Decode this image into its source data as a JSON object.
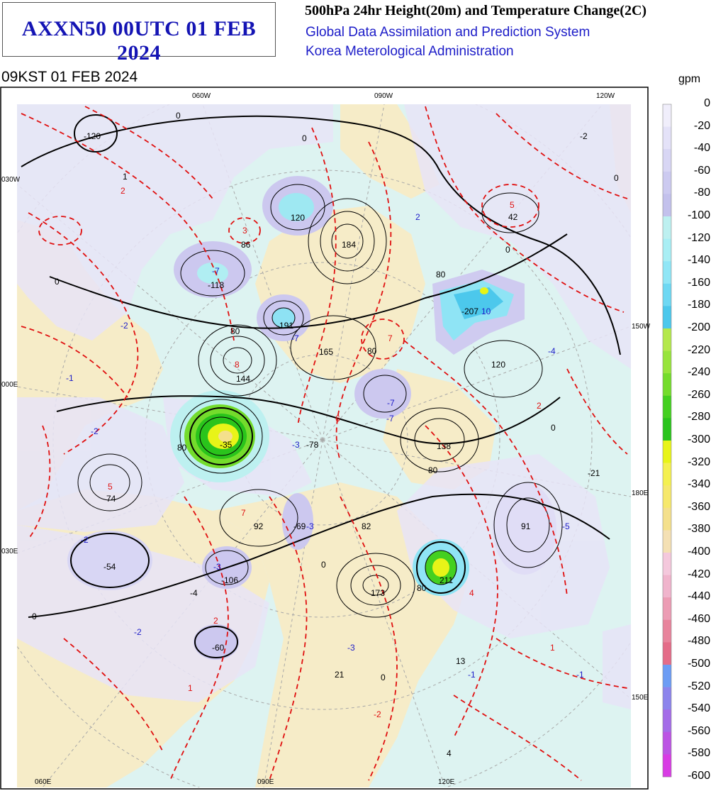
{
  "header": {
    "product_id": "AXXN50 00UTC 01 FEB 2024",
    "title": "500hPa 24hr Height(20m) and Temperature Change(2C)",
    "subtitle1": "Global Data Assimilation and Prediction System",
    "subtitle2": "Korea Meterological Administration",
    "valid_time": "09KST 01 FEB 2024"
  },
  "colorbar": {
    "unit": "gpm",
    "labels": [
      "0",
      "-20",
      "-40",
      "-60",
      "-80",
      "-100",
      "-120",
      "-140",
      "-160",
      "-180",
      "-200",
      "-220",
      "-240",
      "-260",
      "-280",
      "-300",
      "-320",
      "-340",
      "-360",
      "-380",
      "-400",
      "-420",
      "-440",
      "-460",
      "-480",
      "-500",
      "-520",
      "-540",
      "-560",
      "-580",
      "-600"
    ],
    "colors": [
      "#f0eefb",
      "#e4e2f8",
      "#d8d6f4",
      "#cccaf0",
      "#c3c1ec",
      "#bdf0f0",
      "#a9eef4",
      "#90e6f6",
      "#6ed8f3",
      "#4cc8ec",
      "#b4e84c",
      "#98e43c",
      "#74dc2c",
      "#44d020",
      "#2ac41c",
      "#e8f418",
      "#f4f050",
      "#f6e86c",
      "#f4e08c",
      "#f4e0b4",
      "#f4c8dc",
      "#f0b4cc",
      "#ec9cb4",
      "#e8849c",
      "#e46c88",
      "#6c9cf4",
      "#8c84ec",
      "#a46ce8",
      "#bc54e4",
      "#d83ce4"
    ]
  },
  "graticule_labels": {
    "top": [
      "060W",
      "090W",
      "120W"
    ],
    "left": [
      "030W",
      "000E",
      "030E"
    ],
    "right": [
      "150W",
      "180E",
      "150E"
    ],
    "bottom": [
      "060E",
      "090E",
      "120E"
    ]
  },
  "height_change_labels": [
    "-120",
    "1",
    "-2",
    "86",
    "120",
    "184",
    "42",
    "-118",
    "-191",
    "165",
    "-207",
    "120",
    "144",
    "-35",
    "-78",
    "138",
    "74",
    "92",
    "-69",
    "82",
    "91",
    "-21",
    "-54",
    "-106",
    "173",
    "211",
    "-4",
    "-60",
    "21",
    "13",
    "4"
  ],
  "temperature_change_labels": [
    "2",
    "3",
    "5",
    "2",
    "-7",
    "-2",
    "-7",
    "-4",
    "-1",
    "-2",
    "-3",
    "-7",
    "8",
    "-3",
    "6",
    "7",
    "2",
    "5",
    "7",
    "-2",
    "-3",
    "-5",
    "-7",
    "-2",
    "-3",
    "-1",
    "-1",
    "1",
    "2",
    "1",
    "4",
    "-2",
    "10"
  ],
  "contour_labels": [
    "0",
    "80"
  ]
}
